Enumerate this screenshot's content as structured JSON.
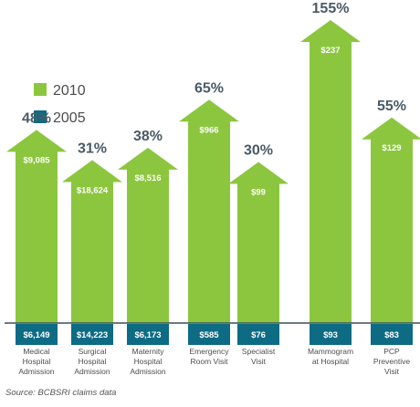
{
  "chart_data": {
    "type": "bar",
    "categories": [
      [
        "Medical",
        "Hospital",
        "Admission"
      ],
      [
        "Surgical",
        "Hospital",
        "Admission"
      ],
      [
        "Maternity",
        "Hospital",
        "Admission"
      ],
      [
        "Emergency",
        "Room Visit"
      ],
      [
        "Specialist",
        "Visit"
      ],
      [
        "Mammogram",
        "at Hospital"
      ],
      [
        "PCP",
        "Preventive",
        "Visit"
      ]
    ],
    "series": [
      {
        "name": "2010",
        "values": [
          "$9,085",
          "$18,624",
          "$8,516",
          "$966",
          "$99",
          "$237",
          "$129"
        ]
      },
      {
        "name": "2005",
        "values": [
          "$6,149",
          "$14,223",
          "$6,173",
          "$585",
          "$76",
          "$93",
          "$83"
        ]
      }
    ],
    "percent_increase": [
      "48%",
      "31%",
      "38%",
      "65%",
      "30%",
      "155%",
      "55%"
    ],
    "percent_values": [
      48,
      31,
      38,
      65,
      30,
      155,
      55
    ],
    "source": "Source: BCBSRI claims data",
    "legend_placement": "top-left",
    "colors": {
      "2010": "#8cc63f",
      "2005": "#0d6b84",
      "percent": "#4a5a66",
      "baseline": "#3d4f5c"
    }
  }
}
